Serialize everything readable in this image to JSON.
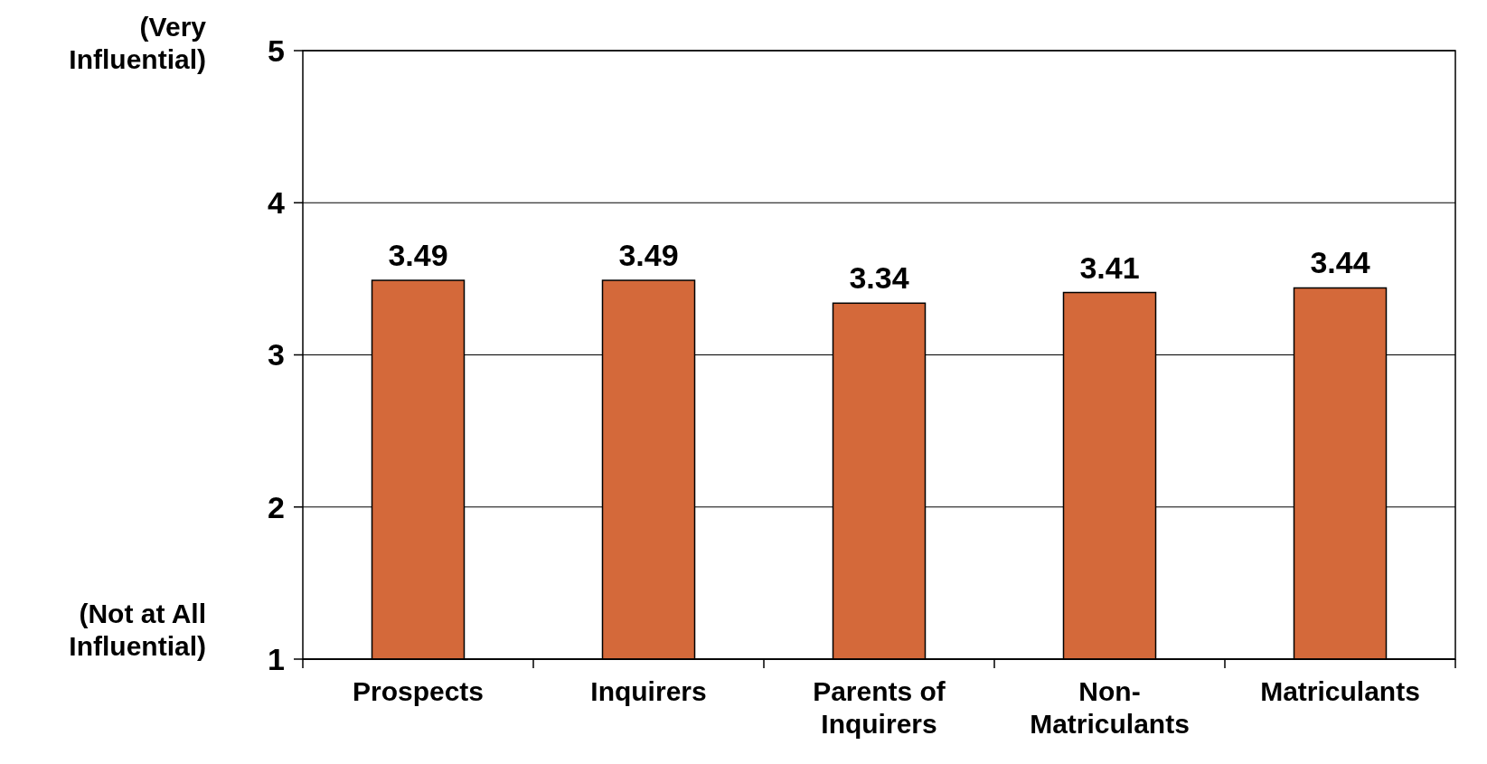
{
  "chart_data": {
    "type": "bar",
    "categories": [
      "Prospects",
      "Inquirers",
      "Parents of Inquirers",
      "Non-Matriculants",
      "Matriculants"
    ],
    "values": [
      3.49,
      3.49,
      3.34,
      3.41,
      3.44
    ],
    "color": "#d4693a",
    "ylim": [
      1,
      5
    ],
    "yticks": [
      1,
      2,
      3,
      4,
      5
    ],
    "grid": "y",
    "data_labels": true,
    "annotations": [
      "(Very Influential)",
      "(Not at All Influential)"
    ]
  }
}
